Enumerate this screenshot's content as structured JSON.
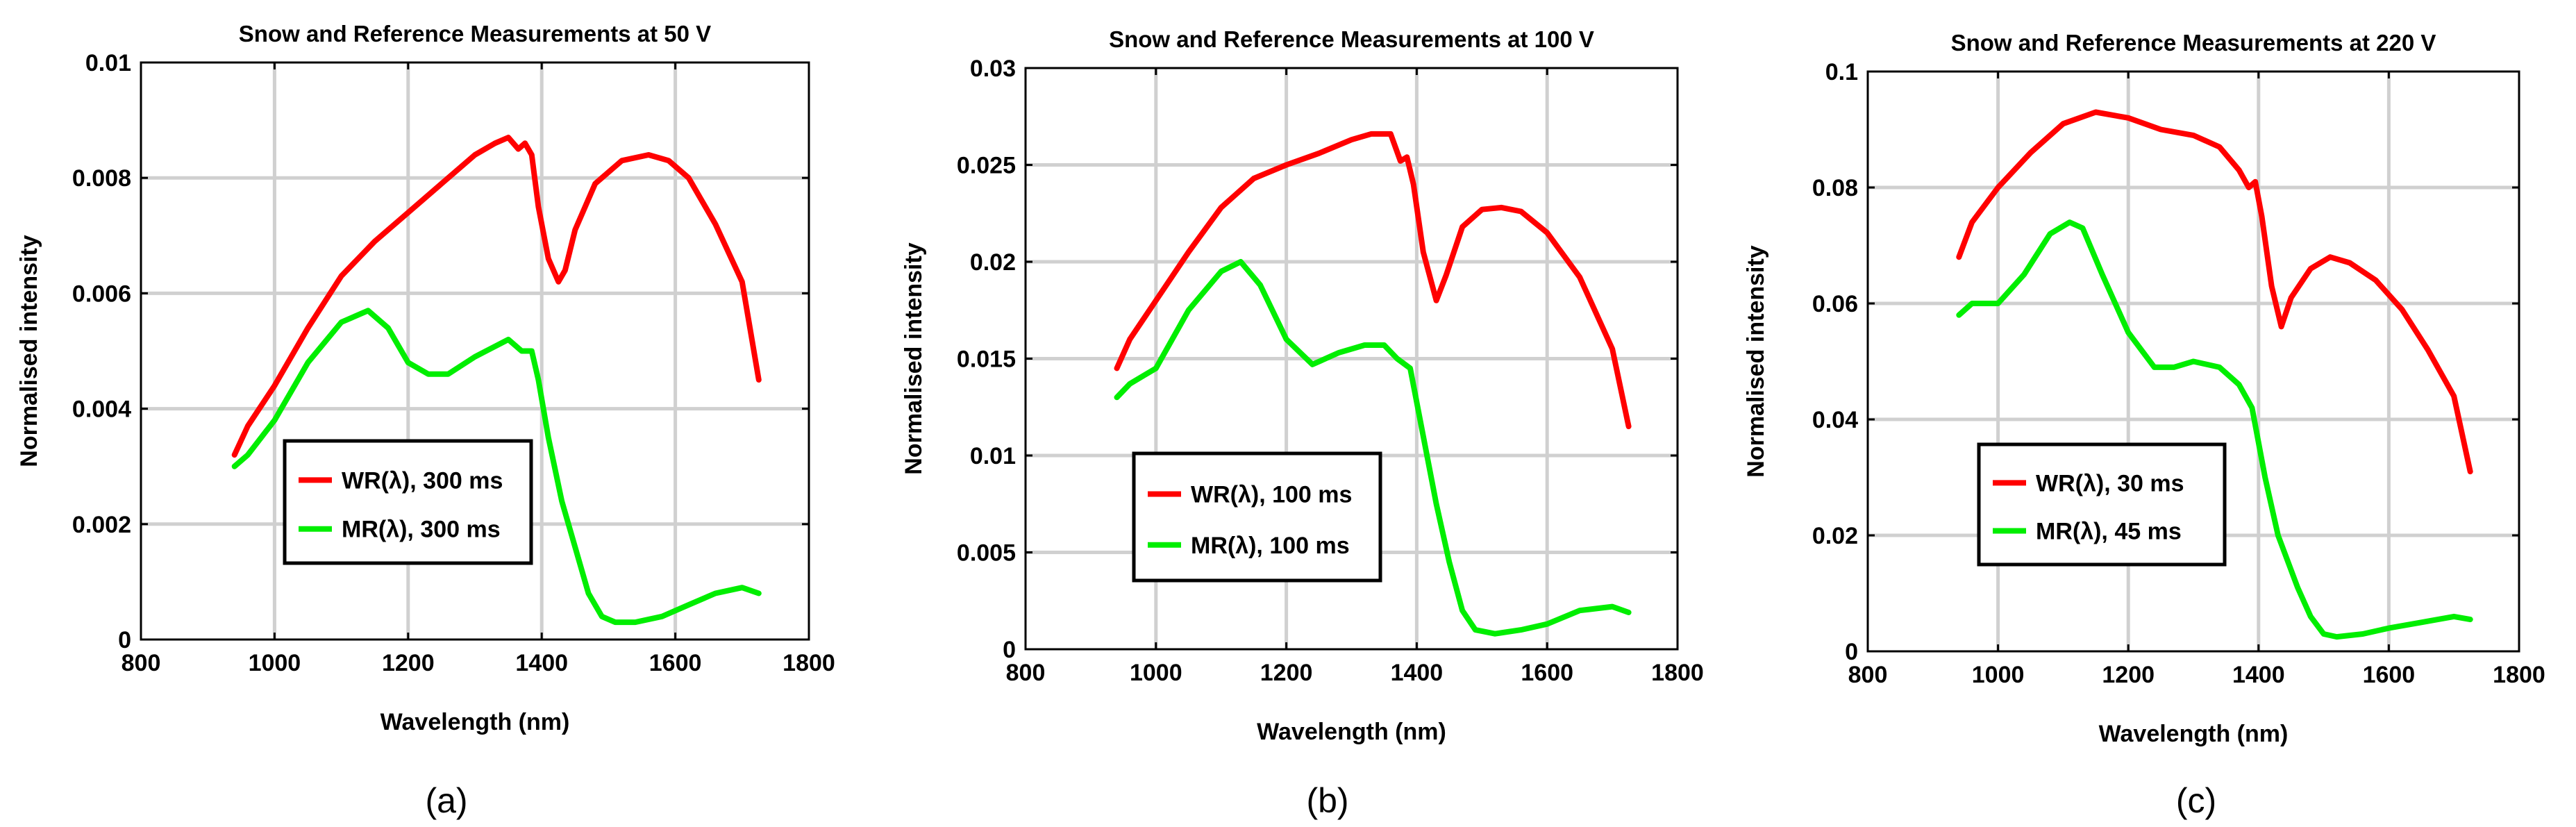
{
  "chart_data": [
    {
      "type": "line",
      "panel_label": "(a)",
      "title": "Snow and Reference Measurements at 50 V",
      "xlabel": "Wavelength (nm)",
      "ylabel": "Normalised intensity",
      "xlim": [
        800,
        1800
      ],
      "ylim": [
        0,
        0.01
      ],
      "xticks": [
        800,
        1000,
        1200,
        1400,
        1600,
        1800
      ],
      "xtick_labels": [
        "800",
        "1000",
        "1200",
        "1400",
        "1600",
        "1800"
      ],
      "yticks": [
        0,
        0.002,
        0.004,
        0.006,
        0.008,
        0.01
      ],
      "ytick_labels": [
        "0",
        "0.002",
        "0.004",
        "0.006",
        "0.008",
        "0.01"
      ],
      "grid": true,
      "legend_position": "lower-center",
      "series": [
        {
          "name": "WR(λ),  300 ms",
          "color": "#ff0000",
          "x": [
            940,
            960,
            1000,
            1050,
            1100,
            1150,
            1200,
            1250,
            1300,
            1330,
            1350,
            1365,
            1375,
            1385,
            1395,
            1410,
            1425,
            1435,
            1450,
            1480,
            1520,
            1560,
            1590,
            1620,
            1660,
            1700,
            1725
          ],
          "y": [
            0.0032,
            0.0037,
            0.0044,
            0.0054,
            0.0063,
            0.0069,
            0.0074,
            0.0079,
            0.0084,
            0.0086,
            0.0087,
            0.0085,
            0.0086,
            0.0084,
            0.0075,
            0.0066,
            0.0062,
            0.0064,
            0.0071,
            0.0079,
            0.0083,
            0.0084,
            0.0083,
            0.008,
            0.0072,
            0.0062,
            0.0045
          ]
        },
        {
          "name": "MR(λ),  300 ms",
          "color": "#00ee00",
          "x": [
            940,
            960,
            1000,
            1050,
            1100,
            1140,
            1170,
            1200,
            1230,
            1260,
            1300,
            1350,
            1370,
            1385,
            1395,
            1410,
            1430,
            1450,
            1470,
            1490,
            1510,
            1540,
            1580,
            1620,
            1660,
            1700,
            1725
          ],
          "y": [
            0.003,
            0.0032,
            0.0038,
            0.0048,
            0.0055,
            0.0057,
            0.0054,
            0.0048,
            0.0046,
            0.0046,
            0.0049,
            0.0052,
            0.005,
            0.005,
            0.0045,
            0.0035,
            0.0024,
            0.0016,
            0.0008,
            0.0004,
            0.0003,
            0.0003,
            0.0004,
            0.0006,
            0.0008,
            0.0009,
            0.0008
          ]
        }
      ]
    },
    {
      "type": "line",
      "panel_label": "(b)",
      "title": "Snow and Reference Measurements at 100 V",
      "xlabel": "Wavelength (nm)",
      "ylabel": "Normalised intensity",
      "xlim": [
        800,
        1800
      ],
      "ylim": [
        0,
        0.03
      ],
      "xticks": [
        800,
        1000,
        1200,
        1400,
        1600,
        1800
      ],
      "xtick_labels": [
        "800",
        "1000",
        "1200",
        "1400",
        "1600",
        "1800"
      ],
      "yticks": [
        0,
        0.005,
        0.01,
        0.015,
        0.02,
        0.025,
        0.03
      ],
      "ytick_labels": [
        "0",
        "0.005",
        "0.01",
        "0.015",
        "0.02",
        "0.025",
        "0.03"
      ],
      "grid": true,
      "legend_position": "lower-center",
      "series": [
        {
          "name": "WR(λ),  100 ms",
          "color": "#ff0000",
          "x": [
            940,
            960,
            1000,
            1050,
            1100,
            1150,
            1200,
            1250,
            1300,
            1330,
            1360,
            1375,
            1385,
            1395,
            1410,
            1430,
            1445,
            1470,
            1500,
            1530,
            1560,
            1600,
            1650,
            1700,
            1725
          ],
          "y": [
            0.0145,
            0.016,
            0.018,
            0.0205,
            0.0228,
            0.0243,
            0.025,
            0.0256,
            0.0263,
            0.0266,
            0.0266,
            0.0252,
            0.0254,
            0.024,
            0.0205,
            0.018,
            0.0193,
            0.0218,
            0.0227,
            0.0228,
            0.0226,
            0.0215,
            0.0192,
            0.0155,
            0.0115
          ]
        },
        {
          "name": "MR(λ),  100 ms",
          "color": "#00ee00",
          "x": [
            940,
            960,
            1000,
            1050,
            1100,
            1130,
            1160,
            1200,
            1240,
            1280,
            1320,
            1350,
            1370,
            1390,
            1410,
            1430,
            1450,
            1470,
            1490,
            1520,
            1560,
            1600,
            1650,
            1700,
            1725
          ],
          "y": [
            0.013,
            0.0137,
            0.0145,
            0.0175,
            0.0195,
            0.02,
            0.0188,
            0.016,
            0.0147,
            0.0153,
            0.0157,
            0.0157,
            0.015,
            0.0145,
            0.011,
            0.0075,
            0.0045,
            0.002,
            0.001,
            0.0008,
            0.001,
            0.0013,
            0.002,
            0.0022,
            0.0019
          ]
        }
      ]
    },
    {
      "type": "line",
      "panel_label": "(c)",
      "title": "Snow and Reference Measurements at 220 V",
      "xlabel": "Wavelength (nm)",
      "ylabel": "Normalised intensity",
      "xlim": [
        800,
        1800
      ],
      "ylim": [
        0,
        0.1
      ],
      "xticks": [
        800,
        1000,
        1200,
        1400,
        1600,
        1800
      ],
      "xtick_labels": [
        "800",
        "1000",
        "1200",
        "1400",
        "1600",
        "1800"
      ],
      "yticks": [
        0,
        0.02,
        0.04,
        0.06,
        0.08,
        0.1
      ],
      "ytick_labels": [
        "0",
        "0.02",
        "0.04",
        "0.06",
        "0.08",
        "0.1"
      ],
      "grid": true,
      "legend_position": "lower-center",
      "series": [
        {
          "name": "WR(λ),  30 ms",
          "color": "#ff0000",
          "x": [
            940,
            960,
            1000,
            1050,
            1100,
            1150,
            1200,
            1250,
            1300,
            1340,
            1370,
            1385,
            1395,
            1405,
            1420,
            1435,
            1450,
            1480,
            1510,
            1540,
            1580,
            1620,
            1660,
            1700,
            1725
          ],
          "y": [
            0.068,
            0.074,
            0.08,
            0.086,
            0.091,
            0.093,
            0.092,
            0.09,
            0.089,
            0.087,
            0.083,
            0.08,
            0.081,
            0.075,
            0.063,
            0.056,
            0.061,
            0.066,
            0.068,
            0.067,
            0.064,
            0.059,
            0.052,
            0.044,
            0.031
          ]
        },
        {
          "name": "MR(λ),  45 ms",
          "color": "#00ee00",
          "x": [
            940,
            960,
            1000,
            1040,
            1080,
            1110,
            1130,
            1160,
            1200,
            1240,
            1270,
            1300,
            1340,
            1370,
            1390,
            1410,
            1430,
            1460,
            1480,
            1500,
            1520,
            1560,
            1600,
            1650,
            1700,
            1725
          ],
          "y": [
            0.058,
            0.06,
            0.06,
            0.065,
            0.072,
            0.074,
            0.073,
            0.065,
            0.055,
            0.049,
            0.049,
            0.05,
            0.049,
            0.046,
            0.042,
            0.03,
            0.02,
            0.011,
            0.006,
            0.003,
            0.0025,
            0.003,
            0.004,
            0.005,
            0.006,
            0.0055
          ]
        }
      ]
    }
  ]
}
